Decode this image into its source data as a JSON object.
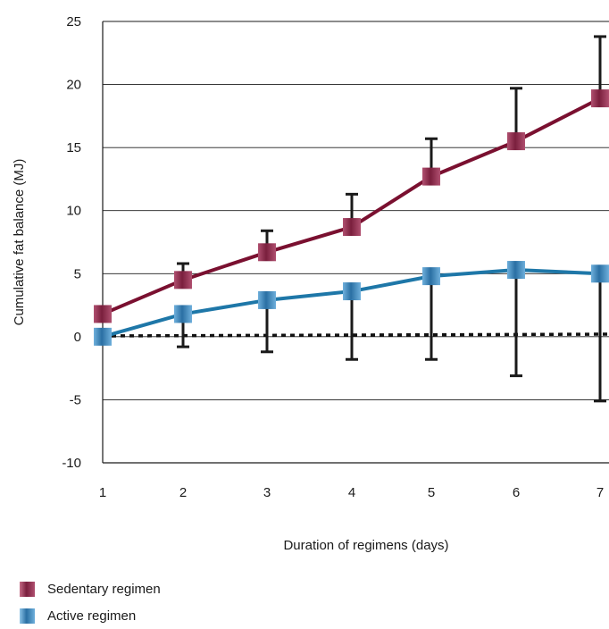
{
  "chart_data": {
    "type": "line",
    "title": "",
    "xlabel": "Duration of regimens (days)",
    "ylabel": "Cumulative fat balance (MJ)",
    "x": [
      1,
      2,
      3,
      4,
      5,
      6,
      7
    ],
    "x_tick_labels": [
      "1",
      "2",
      "3",
      "4",
      "5",
      "6",
      "7"
    ],
    "ylim": [
      -10,
      25
    ],
    "y_ticks": [
      25,
      20,
      15,
      10,
      5,
      0,
      -5,
      -10
    ],
    "y_tick_labels": [
      "25",
      "20",
      "15",
      "10",
      "5",
      "0",
      "-5",
      "-10"
    ],
    "grid": "horizontal",
    "legend_position": "bottom-left",
    "zero_reference_line": "dotted",
    "series": [
      {
        "name": "Sedentary regimen",
        "color": "#7a1030",
        "marker_colors": [
          "#b05070",
          "#7a1f3d"
        ],
        "values": [
          1.8,
          4.5,
          6.7,
          8.7,
          12.7,
          15.5,
          18.9
        ],
        "error_upper": [
          null,
          5.8,
          8.4,
          11.3,
          15.7,
          19.7,
          23.8
        ],
        "error_lower": [
          null,
          null,
          null,
          null,
          null,
          null,
          null
        ]
      },
      {
        "name": "Active regimen",
        "color": "#1e77a8",
        "marker_colors": [
          "#6fb0dc",
          "#2a6fa3"
        ],
        "values": [
          0.0,
          1.8,
          2.9,
          3.6,
          4.8,
          5.3,
          5.0
        ],
        "error_upper": [
          null,
          null,
          null,
          null,
          null,
          null,
          null
        ],
        "error_lower": [
          null,
          -0.8,
          -1.2,
          -1.8,
          -1.8,
          -3.1,
          -5.1
        ]
      }
    ]
  }
}
